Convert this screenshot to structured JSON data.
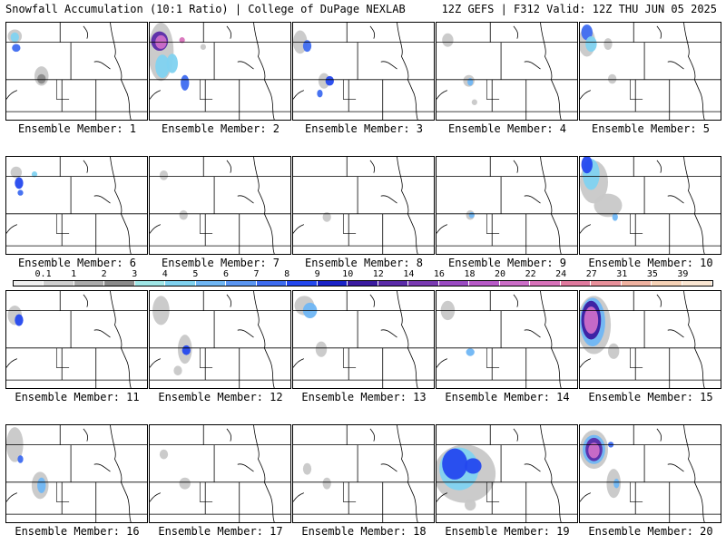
{
  "header": {
    "title": "Snowfall Accumulation (10:1 Ratio) | College of DuPage NEXLAB",
    "run_info": "12Z GEFS | F312 Valid: 12Z THU JUN 05 2025"
  },
  "colorbar": {
    "labels": [
      "0.1",
      "1",
      "2",
      "3",
      "4",
      "5",
      "6",
      "7",
      "8",
      "9",
      "10",
      "12",
      "14",
      "16",
      "18",
      "20",
      "22",
      "24",
      "27",
      "31",
      "35",
      "39"
    ],
    "colors": [
      "#f0f0f0",
      "#cfcfcf",
      "#ababab",
      "#8a8a8a",
      "#9fe6e6",
      "#7fd2f0",
      "#6fb6f4",
      "#5b96f2",
      "#3e6cf0",
      "#2448ee",
      "#1a22c8",
      "#3a1aa0",
      "#5a2aa8",
      "#7a3ab2",
      "#9a4ac2",
      "#b85ac8",
      "#cc6ec8",
      "#d872ba",
      "#e07a9e",
      "#e8909a",
      "#f0b2a0",
      "#f6d2b6",
      "#fae6d2"
    ]
  },
  "members": [
    {
      "caption": "Ensemble Member: 1",
      "blobs": [
        [
          "#c8c8c8",
          0.06,
          0.14,
          0.05,
          0.07
        ],
        [
          "#7fd2f0",
          0.06,
          0.15,
          0.03,
          0.05
        ],
        [
          "#3e6cf0",
          0.07,
          0.26,
          0.03,
          0.04
        ],
        [
          "#c8c8c8",
          0.25,
          0.55,
          0.05,
          0.1
        ],
        [
          "#8a8a8a",
          0.25,
          0.58,
          0.03,
          0.05
        ]
      ]
    },
    {
      "caption": "Ensemble Member: 2",
      "blobs": [
        [
          "#c8c8c8",
          0.08,
          0.3,
          0.09,
          0.3
        ],
        [
          "#7fd2f0",
          0.09,
          0.45,
          0.05,
          0.12
        ],
        [
          "#5a2aa8",
          0.07,
          0.19,
          0.06,
          0.1
        ],
        [
          "#cc6ec8",
          0.08,
          0.2,
          0.04,
          0.07
        ],
        [
          "#d872ba",
          0.23,
          0.18,
          0.02,
          0.03
        ],
        [
          "#7fd2f0",
          0.16,
          0.42,
          0.04,
          0.1
        ],
        [
          "#3e6cf0",
          0.25,
          0.62,
          0.03,
          0.08
        ],
        [
          "#c8c8c8",
          0.38,
          0.25,
          0.02,
          0.03
        ]
      ]
    },
    {
      "caption": "Ensemble Member: 3",
      "blobs": [
        [
          "#c8c8c8",
          0.05,
          0.2,
          0.05,
          0.12
        ],
        [
          "#3e6cf0",
          0.1,
          0.24,
          0.03,
          0.06
        ],
        [
          "#c8c8c8",
          0.22,
          0.6,
          0.04,
          0.08
        ],
        [
          "#2448ee",
          0.26,
          0.6,
          0.03,
          0.05
        ],
        [
          "#3e6cf0",
          0.19,
          0.73,
          0.02,
          0.04
        ]
      ]
    },
    {
      "caption": "Ensemble Member: 4",
      "blobs": [
        [
          "#c8c8c8",
          0.08,
          0.18,
          0.04,
          0.07
        ],
        [
          "#c8c8c8",
          0.23,
          0.6,
          0.04,
          0.06
        ],
        [
          "#6fb6f4",
          0.24,
          0.61,
          0.02,
          0.04
        ],
        [
          "#c8c8c8",
          0.27,
          0.82,
          0.02,
          0.03
        ]
      ]
    },
    {
      "caption": "Ensemble Member: 5",
      "blobs": [
        [
          "#c8c8c8",
          0.05,
          0.2,
          0.06,
          0.15
        ],
        [
          "#3e6cf0",
          0.05,
          0.1,
          0.04,
          0.08
        ],
        [
          "#7fd2f0",
          0.08,
          0.22,
          0.04,
          0.08
        ],
        [
          "#c8c8c8",
          0.2,
          0.22,
          0.03,
          0.06
        ],
        [
          "#c8c8c8",
          0.23,
          0.58,
          0.03,
          0.05
        ]
      ]
    },
    {
      "caption": "Ensemble Member: 6",
      "blobs": [
        [
          "#c8c8c8",
          0.07,
          0.16,
          0.04,
          0.06
        ],
        [
          "#2448ee",
          0.09,
          0.27,
          0.03,
          0.06
        ],
        [
          "#7fd2f0",
          0.2,
          0.18,
          0.02,
          0.03
        ],
        [
          "#3e6cf0",
          0.1,
          0.37,
          0.02,
          0.03
        ]
      ]
    },
    {
      "caption": "Ensemble Member: 7",
      "blobs": [
        [
          "#c8c8c8",
          0.1,
          0.19,
          0.03,
          0.05
        ],
        [
          "#c8c8c8",
          0.24,
          0.6,
          0.03,
          0.05
        ]
      ]
    },
    {
      "caption": "Ensemble Member: 8",
      "blobs": [
        [
          "#c8c8c8",
          0.24,
          0.62,
          0.03,
          0.05
        ]
      ]
    },
    {
      "caption": "Ensemble Member: 9",
      "blobs": [
        [
          "#c8c8c8",
          0.24,
          0.6,
          0.03,
          0.05
        ],
        [
          "#6fb6f4",
          0.25,
          0.6,
          0.02,
          0.03
        ]
      ]
    },
    {
      "caption": "Ensemble Member: 10",
      "blobs": [
        [
          "#c8c8c8",
          0.1,
          0.26,
          0.1,
          0.22
        ],
        [
          "#7fd2f0",
          0.08,
          0.18,
          0.06,
          0.16
        ],
        [
          "#2448ee",
          0.05,
          0.08,
          0.04,
          0.09
        ],
        [
          "#c8c8c8",
          0.2,
          0.5,
          0.1,
          0.12
        ],
        [
          "#6fb6f4",
          0.25,
          0.62,
          0.02,
          0.04
        ]
      ]
    },
    {
      "caption": "Ensemble Member: 11",
      "blobs": [
        [
          "#c8c8c8",
          0.06,
          0.25,
          0.05,
          0.1
        ],
        [
          "#2448ee",
          0.09,
          0.3,
          0.03,
          0.06
        ]
      ]
    },
    {
      "caption": "Ensemble Member: 12",
      "blobs": [
        [
          "#c8c8c8",
          0.08,
          0.2,
          0.06,
          0.15
        ],
        [
          "#c8c8c8",
          0.25,
          0.6,
          0.05,
          0.15
        ],
        [
          "#2448ee",
          0.26,
          0.61,
          0.03,
          0.05
        ],
        [
          "#c8c8c8",
          0.2,
          0.82,
          0.03,
          0.05
        ]
      ]
    },
    {
      "caption": "Ensemble Member: 13",
      "blobs": [
        [
          "#c8c8c8",
          0.08,
          0.15,
          0.07,
          0.1
        ],
        [
          "#6fb6f4",
          0.12,
          0.2,
          0.05,
          0.08
        ],
        [
          "#c8c8c8",
          0.2,
          0.6,
          0.04,
          0.08
        ]
      ]
    },
    {
      "caption": "Ensemble Member: 14",
      "blobs": [
        [
          "#c8c8c8",
          0.08,
          0.2,
          0.05,
          0.1
        ],
        [
          "#6fb6f4",
          0.24,
          0.63,
          0.03,
          0.04
        ]
      ]
    },
    {
      "caption": "Ensemble Member: 15",
      "blobs": [
        [
          "#c8c8c8",
          0.1,
          0.35,
          0.12,
          0.3
        ],
        [
          "#6fb6f4",
          0.09,
          0.32,
          0.09,
          0.25
        ],
        [
          "#3a1aa0",
          0.08,
          0.3,
          0.07,
          0.2
        ],
        [
          "#cc6ec8",
          0.08,
          0.3,
          0.05,
          0.14
        ],
        [
          "#c8c8c8",
          0.24,
          0.62,
          0.04,
          0.08
        ]
      ]
    },
    {
      "caption": "Ensemble Member: 16",
      "blobs": [
        [
          "#c8c8c8",
          0.06,
          0.2,
          0.06,
          0.18
        ],
        [
          "#3e6cf0",
          0.1,
          0.35,
          0.02,
          0.04
        ],
        [
          "#c8c8c8",
          0.24,
          0.62,
          0.06,
          0.14
        ],
        [
          "#6fb6f4",
          0.25,
          0.62,
          0.03,
          0.08
        ]
      ]
    },
    {
      "caption": "Ensemble Member: 17",
      "blobs": [
        [
          "#c8c8c8",
          0.1,
          0.3,
          0.03,
          0.05
        ],
        [
          "#c8c8c8",
          0.25,
          0.6,
          0.04,
          0.06
        ]
      ]
    },
    {
      "caption": "Ensemble Member: 18",
      "blobs": [
        [
          "#c8c8c8",
          0.1,
          0.45,
          0.03,
          0.06
        ],
        [
          "#c8c8c8",
          0.24,
          0.6,
          0.03,
          0.06
        ]
      ]
    },
    {
      "caption": "Ensemble Member: 19",
      "blobs": [
        [
          "#c8c8c8",
          0.2,
          0.5,
          0.22,
          0.3
        ],
        [
          "#7fd2f0",
          0.16,
          0.45,
          0.14,
          0.22
        ],
        [
          "#2448ee",
          0.13,
          0.4,
          0.09,
          0.16
        ],
        [
          "#2448ee",
          0.26,
          0.42,
          0.06,
          0.08
        ],
        [
          "#c8c8c8",
          0.24,
          0.82,
          0.04,
          0.06
        ]
      ]
    },
    {
      "caption": "Ensemble Member: 20",
      "blobs": [
        [
          "#c8c8c8",
          0.1,
          0.25,
          0.1,
          0.2
        ],
        [
          "#6fb6f4",
          0.1,
          0.25,
          0.08,
          0.15
        ],
        [
          "#5a2aa8",
          0.1,
          0.25,
          0.06,
          0.12
        ],
        [
          "#cc6ec8",
          0.1,
          0.26,
          0.04,
          0.08
        ],
        [
          "#c8c8c8",
          0.24,
          0.6,
          0.05,
          0.15
        ],
        [
          "#6fb6f4",
          0.26,
          0.6,
          0.02,
          0.05
        ],
        [
          "#3e6cf0",
          0.22,
          0.2,
          0.02,
          0.03
        ]
      ]
    }
  ]
}
